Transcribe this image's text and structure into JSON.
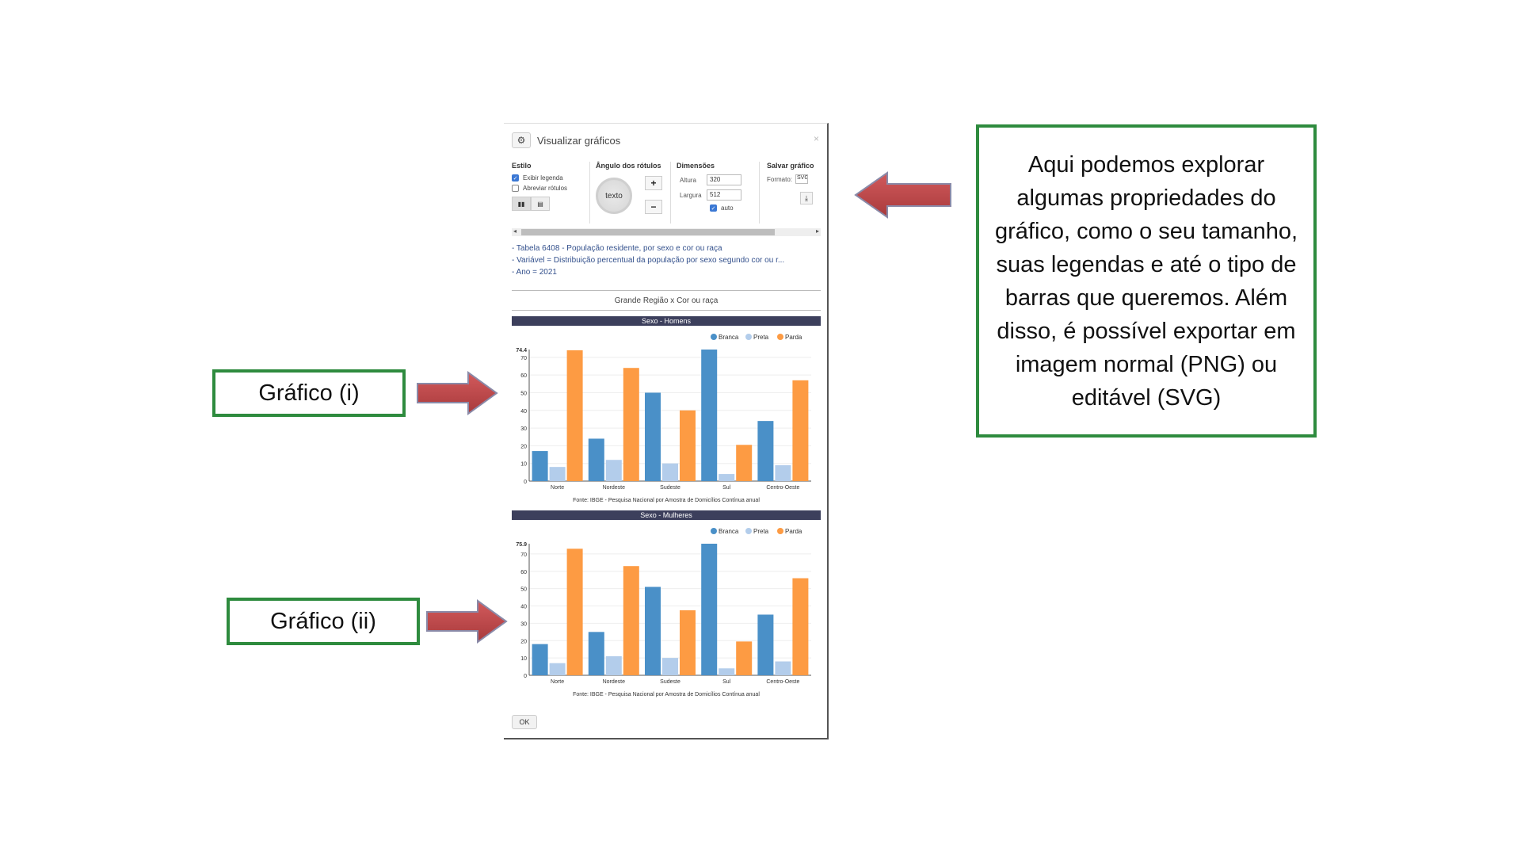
{
  "dialog": {
    "title": "Visualizar gráficos",
    "close_glyph": "×",
    "ok_label": "OK"
  },
  "toolbar": {
    "estilo": {
      "heading": "Estilo",
      "show_legend": "Exibir legenda",
      "show_legend_checked": true,
      "abbrev_labels": "Abreviar rótulos",
      "abbrev_labels_checked": false
    },
    "angulo": {
      "heading": "Ângulo dos rótulos",
      "dial_text": "texto",
      "plus": "+",
      "minus": "−"
    },
    "dimensoes": {
      "heading": "Dimensões",
      "altura_label": "Altura",
      "altura_value": "320",
      "largura_label": "Largura",
      "largura_value": "512",
      "auto_label": "auto",
      "auto_checked": true
    },
    "salvar": {
      "heading": "Salvar gráfico",
      "formato_label": "Formato:",
      "formato_value": "SVG"
    }
  },
  "info_lines": [
    "- Tabela 6408 - População residente, por sexo e cor ou raça",
    "- Variável = Distribuição percentual da população por sexo segundo cor ou r...",
    "- Ano = 2021"
  ],
  "group_title": "Grande Região x Cor ou raça",
  "legend_labels": [
    "Branca",
    "Preta",
    "Parda"
  ],
  "colors": {
    "branca": "#4a90c8",
    "preta": "#b3cdeb",
    "parda": "#fd9b43",
    "band": "#3c3f5c",
    "callout_border": "#2e8b3e",
    "arrow": "#c0484a"
  },
  "chart_data": [
    {
      "type": "bar",
      "title": "Sexo - Homens",
      "categories": [
        "Norte",
        "Nordeste",
        "Sudeste",
        "Sul",
        "Centro-Oeste"
      ],
      "series": [
        {
          "name": "Branca",
          "values": [
            17,
            24,
            50,
            74.4,
            34
          ]
        },
        {
          "name": "Preta",
          "values": [
            8,
            12,
            10,
            4,
            9
          ]
        },
        {
          "name": "Parda",
          "values": [
            74,
            64,
            40,
            20.5,
            57
          ]
        }
      ],
      "ylim": [
        0,
        74.4
      ],
      "yticks": [
        0,
        10,
        20,
        30,
        40,
        50,
        60,
        70
      ],
      "max_label": "74.4",
      "grid": true,
      "legend": "top-right",
      "source": "Fonte: IBGE - Pesquisa Nacional por Amostra de Domicílios Contínua anual"
    },
    {
      "type": "bar",
      "title": "Sexo - Mulheres",
      "categories": [
        "Norte",
        "Nordeste",
        "Sudeste",
        "Sul",
        "Centro-Oeste"
      ],
      "series": [
        {
          "name": "Branca",
          "values": [
            18,
            25,
            51,
            75.9,
            35
          ]
        },
        {
          "name": "Preta",
          "values": [
            7,
            11,
            10,
            4,
            8
          ]
        },
        {
          "name": "Parda",
          "values": [
            73,
            63,
            37.5,
            19.5,
            56
          ]
        }
      ],
      "ylim": [
        0,
        75.9
      ],
      "yticks": [
        0,
        10,
        20,
        30,
        40,
        50,
        60,
        70
      ],
      "max_label": "75.9",
      "grid": true,
      "legend": "top-right",
      "source": "Fonte: IBGE - Pesquisa Nacional por Amostra de Domicílios Contínua anual"
    }
  ],
  "callouts": {
    "main": "Aqui podemos explorar algumas propriedades do gráfico, como o seu tamanho, suas legendas e até o tipo de barras que queremos. Além disso, é possível exportar em imagem normal (PNG) ou editável (SVG)",
    "chart_i": "Gráfico (i)",
    "chart_ii": "Gráfico (ii)"
  }
}
